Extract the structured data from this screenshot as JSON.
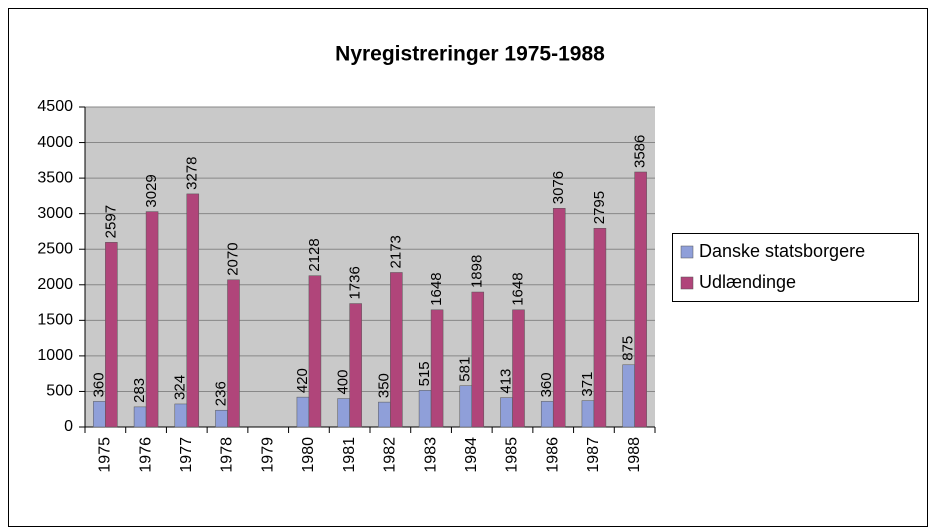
{
  "chart_data": {
    "type": "bar",
    "title": "Nyregistreringer 1975-1988",
    "categories": [
      "1975",
      "1976",
      "1977",
      "1978",
      "1979",
      "1980",
      "1981",
      "1982",
      "1983",
      "1984",
      "1985",
      "1986",
      "1987",
      "1988"
    ],
    "series": [
      {
        "name": "Danske statsborgere",
        "color": "#8f9fd9",
        "values": [
          360,
          283,
          324,
          236,
          null,
          420,
          400,
          350,
          515,
          581,
          413,
          360,
          371,
          875
        ]
      },
      {
        "name": "Udlændinge",
        "color": "#b0457a",
        "values": [
          2597,
          3029,
          3278,
          2070,
          null,
          2128,
          1736,
          2173,
          1648,
          1898,
          1648,
          3076,
          2795,
          3586
        ]
      }
    ],
    "ylim": [
      0,
      4500
    ],
    "yticks": [
      0,
      500,
      1000,
      1500,
      2000,
      2500,
      3000,
      3500,
      4000,
      4500
    ],
    "grid": true,
    "legend": "right"
  }
}
